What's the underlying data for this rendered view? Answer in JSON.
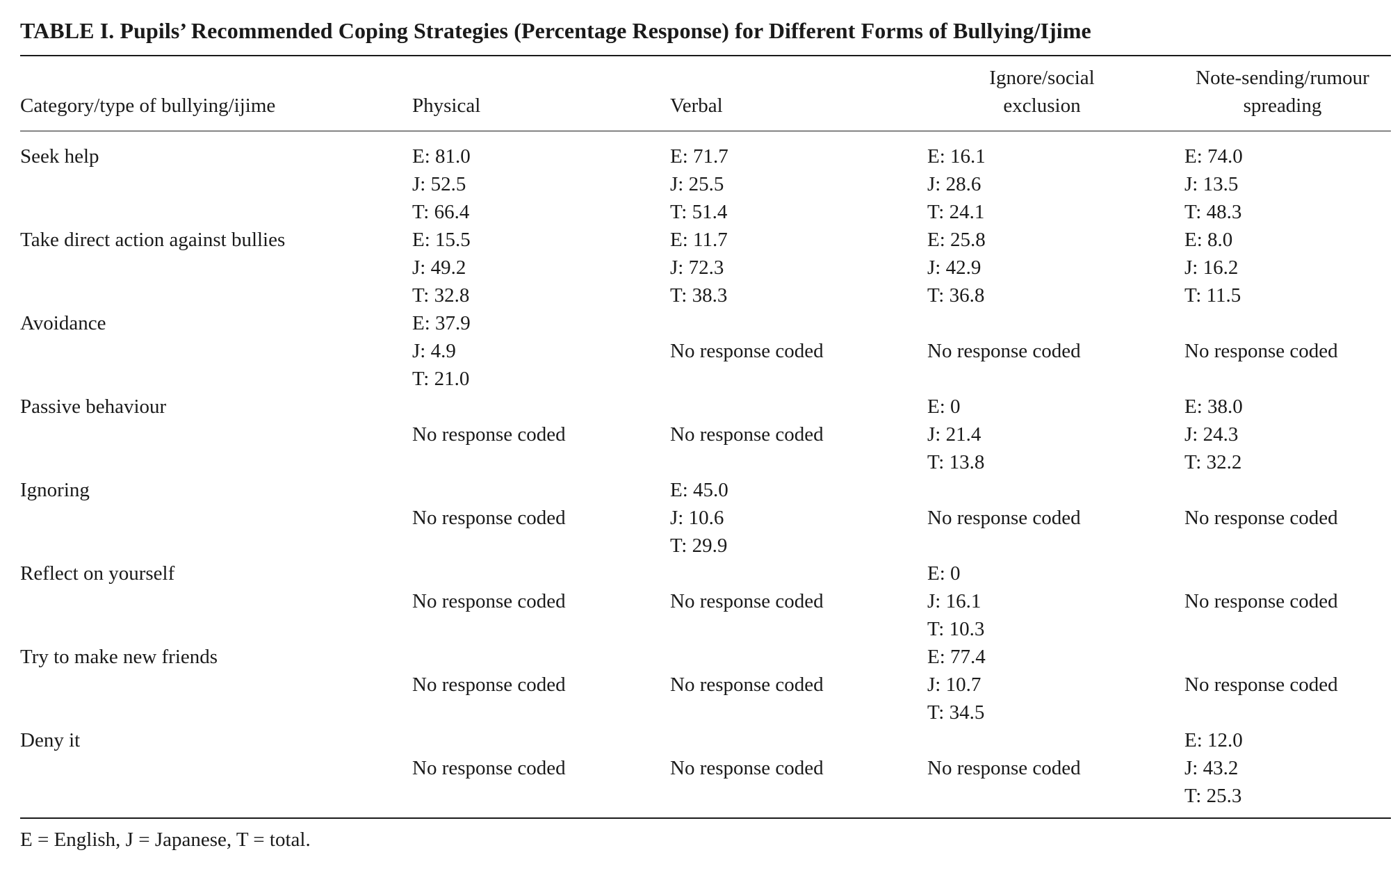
{
  "table": {
    "title": "TABLE I. Pupils’ Recommended Coping Strategies (Percentage Response) for Different Forms of Bullying/Ijime",
    "header": {
      "category": "Category/type of bullying/ijime",
      "physical": "Physical",
      "verbal": "Verbal",
      "ignore_line1": "Ignore/social",
      "ignore_line2": "exclusion",
      "note_line1": "Note-sending/rumour",
      "note_line2": "spreading"
    },
    "rows": [
      {
        "label": "Seek help",
        "physical": [
          "E: 81.0",
          "J: 52.5",
          "T: 66.4"
        ],
        "verbal": [
          "E: 71.7",
          "J: 25.5",
          "T: 51.4"
        ],
        "ignore": [
          "E: 16.1",
          "J: 28.6",
          "T: 24.1"
        ],
        "note": [
          "E: 74.0",
          "J: 13.5",
          "T: 48.3"
        ]
      },
      {
        "label": "Take direct action against bullies",
        "physical": [
          "E: 15.5",
          "J: 49.2",
          "T: 32.8"
        ],
        "verbal": [
          "E: 11.7",
          "J: 72.3",
          "T: 38.3"
        ],
        "ignore": [
          "E: 25.8",
          "J: 42.9",
          "T: 36.8"
        ],
        "note": [
          "E: 8.0",
          "J: 16.2",
          "T: 11.5"
        ]
      },
      {
        "label": "Avoidance",
        "physical": [
          "E: 37.9",
          "J: 4.9",
          "T: 21.0"
        ],
        "verbal": "No response coded",
        "ignore": "No response coded",
        "note": "No response coded"
      },
      {
        "label": "Passive behaviour",
        "physical": "No response coded",
        "verbal": "No response coded",
        "ignore": [
          "E: 0",
          "J: 21.4",
          "T: 13.8"
        ],
        "note": [
          "E: 38.0",
          "J: 24.3",
          "T: 32.2"
        ]
      },
      {
        "label": "Ignoring",
        "physical": "No response coded",
        "verbal": [
          "E: 45.0",
          "J: 10.6",
          "T: 29.9"
        ],
        "ignore": "No response coded",
        "note": "No response coded"
      },
      {
        "label": "Reflect on yourself",
        "physical": "No response coded",
        "verbal": "No response coded",
        "ignore": [
          "E: 0",
          "J: 16.1",
          "T: 10.3"
        ],
        "note": "No response coded"
      },
      {
        "label": "Try to make new friends",
        "physical": "No response coded",
        "verbal": "No response coded",
        "ignore": [
          "E: 77.4",
          "J: 10.7",
          "T: 34.5"
        ],
        "note": "No response coded"
      },
      {
        "label": "Deny it",
        "physical": "No response coded",
        "verbal": "No response coded",
        "ignore": "No response coded",
        "note": [
          "E: 12.0",
          "J: 43.2",
          "T: 25.3"
        ]
      }
    ],
    "footnote": "E = English, J = Japanese, T = total."
  }
}
